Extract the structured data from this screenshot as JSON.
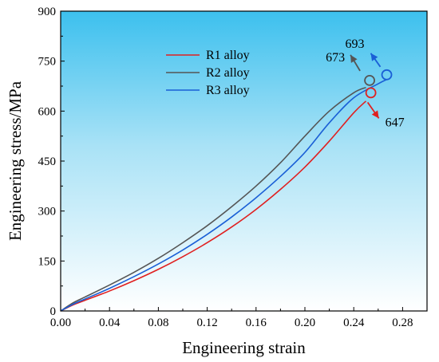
{
  "chart_data": {
    "type": "line",
    "xlabel": "Engineering strain",
    "ylabel": "Engineering stress/MPa",
    "xlim": [
      0,
      0.3
    ],
    "ylim": [
      0,
      900
    ],
    "xticks": [
      "0.00",
      "0.04",
      "0.08",
      "0.12",
      "0.16",
      "0.20",
      "0.24",
      "0.28"
    ],
    "yticks": [
      "0",
      "150",
      "300",
      "450",
      "600",
      "750",
      "900"
    ],
    "legend_position": "top-center",
    "background": "gradient-light-blue",
    "series": [
      {
        "name": "R1 alloy",
        "color": "#e02020",
        "points": [
          [
            0,
            0
          ],
          [
            0.01,
            18
          ],
          [
            0.02,
            32
          ],
          [
            0.04,
            60
          ],
          [
            0.06,
            91
          ],
          [
            0.08,
            125
          ],
          [
            0.1,
            163
          ],
          [
            0.12,
            205
          ],
          [
            0.14,
            252
          ],
          [
            0.16,
            305
          ],
          [
            0.18,
            365
          ],
          [
            0.2,
            432
          ],
          [
            0.22,
            510
          ],
          [
            0.24,
            595
          ],
          [
            0.25,
            630
          ]
        ],
        "peak": {
          "x": 0.254,
          "y": 655
        },
        "annotation": "647",
        "arrow": "down-right"
      },
      {
        "name": "R2 alloy",
        "color": "#555555",
        "points": [
          [
            0,
            0
          ],
          [
            0.01,
            24
          ],
          [
            0.02,
            42
          ],
          [
            0.04,
            78
          ],
          [
            0.06,
            116
          ],
          [
            0.08,
            158
          ],
          [
            0.1,
            205
          ],
          [
            0.12,
            256
          ],
          [
            0.14,
            313
          ],
          [
            0.16,
            375
          ],
          [
            0.18,
            445
          ],
          [
            0.2,
            525
          ],
          [
            0.22,
            600
          ],
          [
            0.24,
            655
          ],
          [
            0.25,
            671
          ]
        ],
        "peak": {
          "x": 0.253,
          "y": 692
        },
        "annotation": "673",
        "arrow": "up-left"
      },
      {
        "name": "R3 alloy",
        "color": "#1a5fd6",
        "points": [
          [
            0,
            0
          ],
          [
            0.01,
            20
          ],
          [
            0.02,
            36
          ],
          [
            0.04,
            68
          ],
          [
            0.06,
            103
          ],
          [
            0.08,
            141
          ],
          [
            0.1,
            183
          ],
          [
            0.12,
            230
          ],
          [
            0.14,
            282
          ],
          [
            0.16,
            340
          ],
          [
            0.18,
            404
          ],
          [
            0.2,
            476
          ],
          [
            0.22,
            565
          ],
          [
            0.24,
            640
          ],
          [
            0.26,
            682
          ],
          [
            0.267,
            695
          ]
        ],
        "peak": {
          "x": 0.267,
          "y": 709
        },
        "annotation": "693",
        "arrow": "up-left"
      }
    ]
  }
}
